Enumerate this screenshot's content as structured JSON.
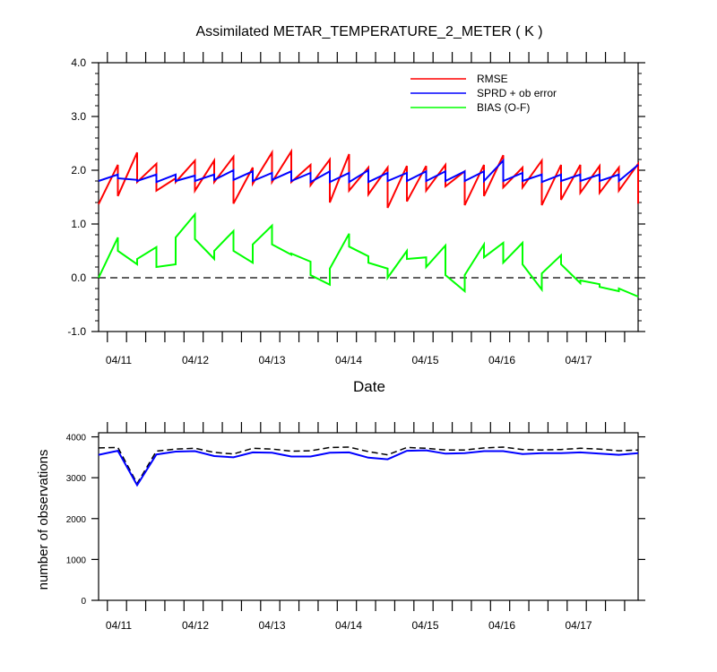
{
  "chart_data": [
    {
      "type": "line",
      "title": "Assimilated METAR_TEMPERATURE_2_METER ( K )",
      "xlabel": "Date",
      "ylabel": "",
      "x_tick_labels": [
        "04/11",
        "04/12",
        "04/13",
        "04/14",
        "04/15",
        "04/16",
        "04/17"
      ],
      "xlim": [
        0,
        28
      ],
      "ylim": [
        -1.0,
        4.0
      ],
      "y_tick_labels": [
        "-1.0",
        "0.0",
        "1.0",
        "2.0",
        "3.0",
        "4.0"
      ],
      "y_ticks": [
        -1,
        0,
        1,
        2,
        3,
        4
      ],
      "legend_position": "top-right",
      "reference_line": {
        "y": 0,
        "style": "dashed",
        "color": "#000000"
      },
      "series": [
        {
          "name": "RMSE",
          "color": "#ff0000",
          "x": [
            0,
            1,
            1,
            2,
            2,
            3,
            3,
            4,
            4,
            5,
            5,
            6,
            6,
            7,
            7,
            8,
            8,
            9,
            9,
            10,
            10,
            11,
            11,
            12,
            12,
            13,
            13,
            14,
            14,
            15,
            15,
            16,
            16,
            17,
            17,
            18,
            18,
            19,
            19,
            20,
            20,
            21,
            21,
            22,
            22,
            23,
            23,
            24,
            24,
            25,
            25,
            26,
            26,
            27,
            27,
            28,
            28
          ],
          "values": [
            1.37,
            2.1,
            1.52,
            2.33,
            1.78,
            2.12,
            1.62,
            1.85,
            1.78,
            2.18,
            1.62,
            2.18,
            1.78,
            2.25,
            1.38,
            2.05,
            1.75,
            2.33,
            1.78,
            2.35,
            1.78,
            2.1,
            1.72,
            2.2,
            1.4,
            2.3,
            1.62,
            2.05,
            1.55,
            2.05,
            1.3,
            2.08,
            1.42,
            2.08,
            1.62,
            2.1,
            1.7,
            1.98,
            1.35,
            2.1,
            1.52,
            2.28,
            1.68,
            2.05,
            1.68,
            2.18,
            1.35,
            2.1,
            1.45,
            2.1,
            1.58,
            2.08,
            1.58,
            2.05,
            1.62,
            2.12,
            1.38
          ]
        },
        {
          "name": "SPRD + ob error",
          "color": "#0000ff",
          "x": [
            0,
            1,
            1,
            2,
            2,
            3,
            3,
            4,
            4,
            5,
            5,
            6,
            6,
            7,
            7,
            8,
            8,
            9,
            9,
            10,
            10,
            11,
            11,
            12,
            12,
            13,
            13,
            14,
            14,
            15,
            15,
            16,
            16,
            17,
            17,
            18,
            18,
            19,
            19,
            20,
            20,
            21,
            21,
            22,
            22,
            23,
            23,
            24,
            24,
            25,
            25,
            26,
            26,
            27,
            27,
            28
          ],
          "values": [
            1.8,
            1.92,
            1.85,
            1.82,
            1.8,
            1.92,
            1.78,
            1.92,
            1.8,
            1.9,
            1.8,
            1.92,
            1.82,
            2.0,
            1.82,
            1.98,
            1.8,
            1.95,
            1.82,
            1.98,
            1.8,
            1.95,
            1.78,
            1.98,
            1.78,
            1.95,
            1.78,
            2.0,
            1.78,
            1.95,
            1.8,
            1.95,
            1.8,
            1.98,
            1.8,
            1.98,
            1.8,
            1.98,
            1.8,
            1.98,
            1.8,
            2.18,
            1.8,
            1.95,
            1.8,
            1.92,
            1.78,
            1.92,
            1.8,
            1.92,
            1.8,
            1.92,
            1.8,
            1.92,
            1.8,
            2.1
          ]
        },
        {
          "name": "BIAS (O-F)",
          "color": "#00ff00",
          "x": [
            0,
            1,
            1,
            2,
            2,
            3,
            3,
            4,
            4,
            5,
            5,
            6,
            6,
            7,
            7,
            8,
            8,
            9,
            9,
            10,
            10,
            11,
            11,
            12,
            12,
            13,
            13,
            14,
            14,
            15,
            15,
            16,
            16,
            17,
            17,
            18,
            18,
            19,
            19,
            20,
            20,
            21,
            21,
            22,
            22,
            23,
            23,
            24,
            24,
            25,
            25,
            26,
            26,
            27,
            27,
            28
          ],
          "values": [
            0.0,
            0.75,
            0.5,
            0.25,
            0.35,
            0.57,
            0.2,
            0.25,
            0.75,
            1.18,
            0.72,
            0.35,
            0.5,
            0.87,
            0.5,
            0.28,
            0.62,
            0.97,
            0.62,
            0.43,
            0.45,
            0.3,
            0.05,
            -0.13,
            0.17,
            0.82,
            0.58,
            0.4,
            0.28,
            0.17,
            0.0,
            0.5,
            0.35,
            0.38,
            0.2,
            0.6,
            0.05,
            -0.25,
            0.05,
            0.62,
            0.38,
            0.65,
            0.28,
            0.65,
            0.25,
            -0.22,
            0.08,
            0.42,
            0.25,
            -0.1,
            -0.05,
            -0.12,
            -0.17,
            -0.25,
            -0.2,
            -0.35
          ]
        }
      ]
    },
    {
      "type": "line",
      "title": "",
      "xlabel": "",
      "ylabel": "number of observations",
      "x_tick_labels": [
        "04/11",
        "04/12",
        "04/13",
        "04/14",
        "04/15",
        "04/16",
        "04/17"
      ],
      "xlim": [
        0,
        28
      ],
      "ylim": [
        0,
        4100
      ],
      "y_ticks": [
        0,
        1000,
        2000,
        3000,
        4000
      ],
      "y_tick_labels": [
        "0",
        "1000",
        "2000",
        "3000",
        "4000"
      ],
      "series": [
        {
          "name": "",
          "color": "#000000",
          "style": "dashed",
          "x": [
            0,
            1,
            2,
            3,
            4,
            5,
            6,
            7,
            8,
            9,
            10,
            11,
            12,
            13,
            14,
            15,
            16,
            17,
            18,
            19,
            20,
            21,
            22,
            23,
            24,
            25,
            26,
            27,
            28
          ],
          "values": [
            3730,
            3740,
            2860,
            3650,
            3700,
            3720,
            3620,
            3580,
            3720,
            3700,
            3650,
            3660,
            3740,
            3750,
            3640,
            3560,
            3740,
            3720,
            3680,
            3680,
            3730,
            3750,
            3690,
            3680,
            3690,
            3720,
            3700,
            3660,
            3680
          ]
        },
        {
          "name": "",
          "color": "#0000ff",
          "style": "solid",
          "x": [
            0,
            1,
            2,
            3,
            4,
            5,
            6,
            7,
            8,
            9,
            10,
            11,
            12,
            13,
            14,
            15,
            16,
            17,
            18,
            19,
            20,
            21,
            22,
            23,
            24,
            25,
            26,
            27,
            28
          ],
          "values": [
            3560,
            3660,
            2820,
            3570,
            3640,
            3650,
            3530,
            3500,
            3620,
            3610,
            3520,
            3520,
            3610,
            3620,
            3490,
            3450,
            3660,
            3670,
            3590,
            3600,
            3650,
            3650,
            3580,
            3600,
            3600,
            3620,
            3590,
            3560,
            3600
          ]
        }
      ]
    }
  ]
}
